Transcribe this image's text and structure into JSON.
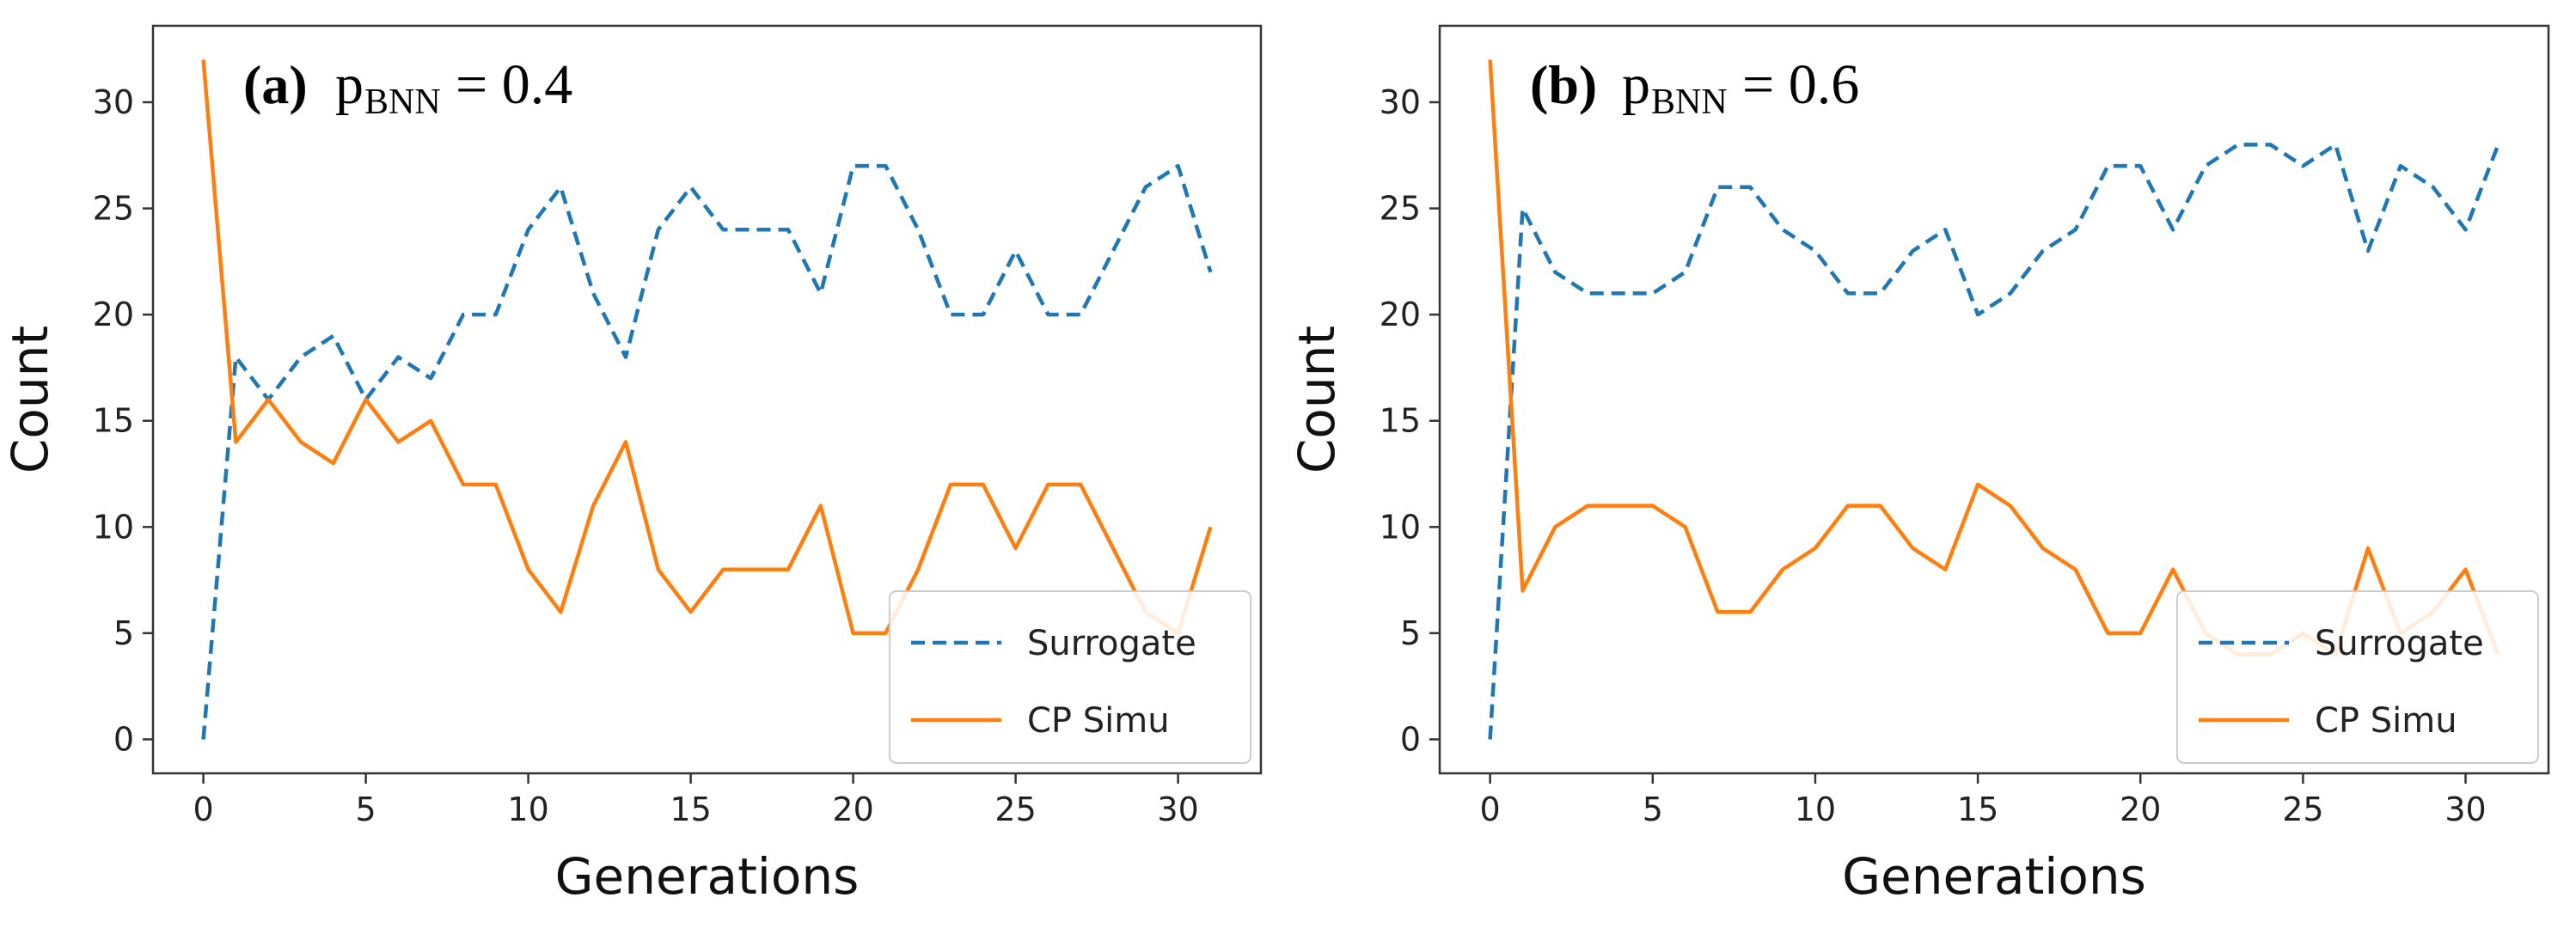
{
  "chart_data": [
    {
      "type": "line",
      "panel_label": "(a)",
      "title_var": "p",
      "title_sub": "BNN",
      "title_eq": "= 0.4",
      "xlabel": "Generations",
      "ylabel": "Count",
      "xlim": [
        -1.55,
        32.55
      ],
      "ylim": [
        -1.6,
        33.6
      ],
      "xticks": [
        0,
        5,
        10,
        15,
        20,
        25,
        30
      ],
      "yticks": [
        0,
        5,
        10,
        15,
        20,
        25,
        30
      ],
      "legend_position": "lower-right",
      "x": [
        0,
        1,
        2,
        3,
        4,
        5,
        6,
        7,
        8,
        9,
        10,
        11,
        12,
        13,
        14,
        15,
        16,
        17,
        18,
        19,
        20,
        21,
        22,
        23,
        24,
        25,
        26,
        27,
        28,
        29,
        30,
        31
      ],
      "series": [
        {
          "name": "Surrogate",
          "color": "#1f77b4",
          "style": "dashed",
          "values": [
            0,
            18,
            16,
            18,
            19,
            16,
            18,
            17,
            20,
            20,
            24,
            26,
            21,
            18,
            24,
            26,
            24,
            24,
            24,
            21,
            27,
            27,
            24,
            20,
            20,
            23,
            20,
            20,
            23,
            26,
            27,
            22
          ]
        },
        {
          "name": "CP Simu",
          "color": "#ff7f0e",
          "style": "solid",
          "values": [
            32,
            14,
            16,
            14,
            13,
            16,
            14,
            15,
            12,
            12,
            8,
            6,
            11,
            14,
            8,
            6,
            8,
            8,
            8,
            11,
            5,
            5,
            8,
            12,
            12,
            9,
            12,
            12,
            9,
            6,
            5,
            10
          ]
        }
      ]
    },
    {
      "type": "line",
      "panel_label": "(b)",
      "title_var": "p",
      "title_sub": "BNN",
      "title_eq": "= 0.6",
      "xlabel": "Generations",
      "ylabel": "Count",
      "xlim": [
        -1.55,
        32.55
      ],
      "ylim": [
        -1.6,
        33.6
      ],
      "xticks": [
        0,
        5,
        10,
        15,
        20,
        25,
        30
      ],
      "yticks": [
        0,
        5,
        10,
        15,
        20,
        25,
        30
      ],
      "legend_position": "lower-right",
      "x": [
        0,
        1,
        2,
        3,
        4,
        5,
        6,
        7,
        8,
        9,
        10,
        11,
        12,
        13,
        14,
        15,
        16,
        17,
        18,
        19,
        20,
        21,
        22,
        23,
        24,
        25,
        26,
        27,
        28,
        29,
        30,
        31
      ],
      "series": [
        {
          "name": "Surrogate",
          "color": "#1f77b4",
          "style": "dashed",
          "values": [
            0,
            25,
            22,
            21,
            21,
            21,
            22,
            26,
            26,
            24,
            23,
            21,
            21,
            23,
            24,
            20,
            21,
            23,
            24,
            27,
            27,
            24,
            27,
            28,
            28,
            27,
            28,
            23,
            27,
            26,
            24,
            28
          ]
        },
        {
          "name": "CP Simu",
          "color": "#ff7f0e",
          "style": "solid",
          "values": [
            32,
            7,
            10,
            11,
            11,
            11,
            10,
            6,
            6,
            8,
            9,
            11,
            11,
            9,
            8,
            12,
            11,
            9,
            8,
            5,
            5,
            8,
            5,
            4,
            4,
            5,
            4,
            9,
            5,
            6,
            8,
            4
          ]
        }
      ]
    }
  ]
}
